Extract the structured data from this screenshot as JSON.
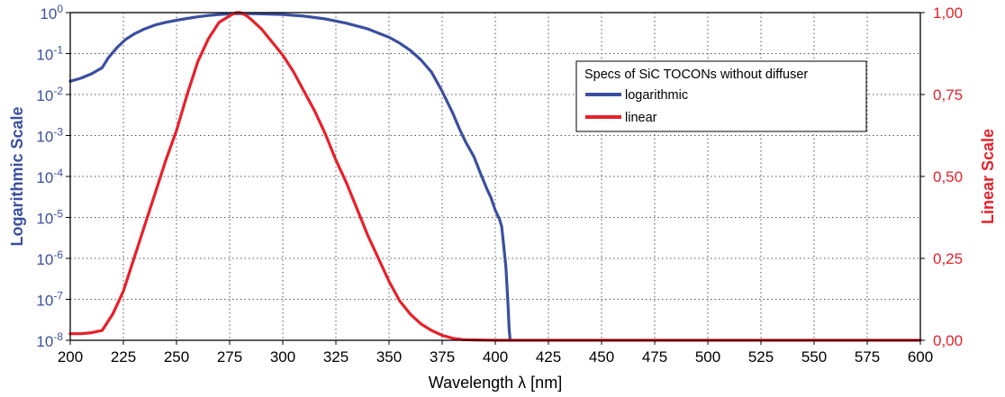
{
  "chart_data": {
    "type": "line",
    "legend_title": "Specs of SiC TOCONs without diffuser",
    "legend_position": "top-right",
    "grid": true,
    "xlabel": "Wavelength λ [nm]",
    "xlim": [
      200,
      600
    ],
    "xticks": [
      "200",
      "225",
      "250",
      "275",
      "300",
      "325",
      "350",
      "375",
      "400",
      "425",
      "450",
      "475",
      "500",
      "525",
      "550",
      "575",
      "600"
    ],
    "ylabel_left": "Logarithmic Scale",
    "ylim_left": [
      1e-08,
      1
    ],
    "yscale_left": "log",
    "yticks_left": [
      {
        "base": "10",
        "exp": "0"
      },
      {
        "base": "10",
        "exp": "-1"
      },
      {
        "base": "10",
        "exp": "-2"
      },
      {
        "base": "10",
        "exp": "-3"
      },
      {
        "base": "10",
        "exp": "-4"
      },
      {
        "base": "10",
        "exp": "-5"
      },
      {
        "base": "10",
        "exp": "-6"
      },
      {
        "base": "10",
        "exp": "-7"
      },
      {
        "base": "10",
        "exp": "-8"
      }
    ],
    "ylabel_right": "Linear Scale",
    "ylim_right": [
      0,
      1
    ],
    "yticks_right": [
      "1,00",
      "0,75",
      "0,50",
      "0,25",
      "0,00"
    ],
    "colors": {
      "logarithmic": "#3a4fa0",
      "linear": "#e8202a"
    },
    "series": [
      {
        "name": "logarithmic",
        "axis": "left",
        "x": [
          200,
          205,
          210,
          215,
          218,
          222,
          226,
          230,
          235,
          240,
          245,
          250,
          255,
          260,
          265,
          270,
          275,
          280,
          290,
          300,
          310,
          320,
          330,
          340,
          350,
          355,
          360,
          365,
          370,
          375,
          380,
          383,
          386,
          390,
          393,
          396,
          398,
          400,
          402,
          403,
          404,
          405,
          406,
          406.5,
          407,
          407.3
        ],
        "y": [
          0.021,
          0.025,
          0.032,
          0.045,
          0.08,
          0.14,
          0.22,
          0.3,
          0.4,
          0.5,
          0.58,
          0.65,
          0.72,
          0.79,
          0.85,
          0.9,
          0.93,
          0.95,
          0.93,
          0.9,
          0.82,
          0.7,
          0.55,
          0.4,
          0.25,
          0.18,
          0.12,
          0.07,
          0.035,
          0.012,
          0.0035,
          0.0015,
          0.0007,
          0.0003,
          0.00012,
          5e-05,
          3e-05,
          1.5e-05,
          9e-06,
          6e-06,
          2e-06,
          6e-07,
          7e-08,
          2e-08,
          1e-08,
          1e-08
        ]
      },
      {
        "name": "linear",
        "axis": "right",
        "x": [
          200,
          205,
          210,
          215,
          220,
          225,
          230,
          235,
          240,
          245,
          250,
          255,
          260,
          265,
          270,
          275,
          278,
          280,
          283,
          285,
          290,
          295,
          300,
          305,
          310,
          315,
          320,
          325,
          330,
          335,
          340,
          345,
          350,
          355,
          360,
          365,
          370,
          375,
          380,
          385,
          390,
          400,
          420,
          450,
          500,
          550,
          600
        ],
        "y": [
          0.02,
          0.02,
          0.023,
          0.03,
          0.08,
          0.15,
          0.25,
          0.35,
          0.45,
          0.55,
          0.64,
          0.75,
          0.85,
          0.92,
          0.97,
          0.99,
          1.0,
          1.0,
          0.99,
          0.98,
          0.95,
          0.91,
          0.87,
          0.82,
          0.76,
          0.7,
          0.63,
          0.55,
          0.48,
          0.4,
          0.32,
          0.25,
          0.18,
          0.12,
          0.08,
          0.05,
          0.03,
          0.015,
          0.006,
          0.002,
          0.001,
          0.0,
          0.0,
          0.0,
          0.0,
          0.0,
          0.0
        ]
      }
    ]
  }
}
